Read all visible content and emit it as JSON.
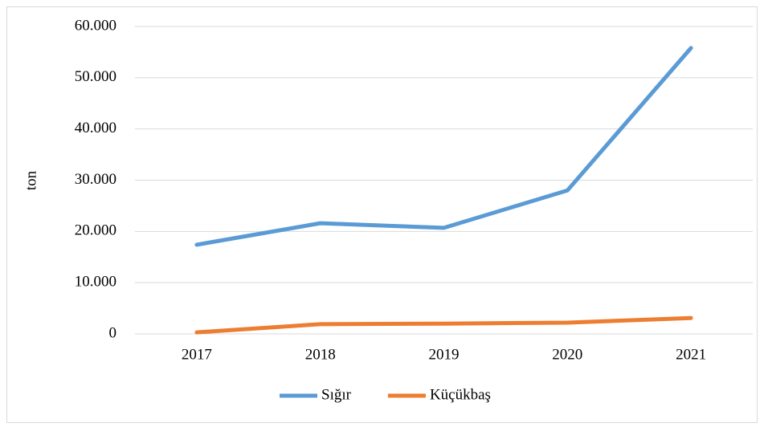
{
  "chart_data": {
    "type": "line",
    "y_label": "ton",
    "categories": [
      "2017",
      "2018",
      "2019",
      "2020",
      "2021"
    ],
    "series": [
      {
        "name": "Sığır",
        "color": "#5b9bd5",
        "values": [
          17400,
          21600,
          20700,
          28000,
          55800
        ]
      },
      {
        "name": "Küçükbaş",
        "color": "#ed7d31",
        "values": [
          300,
          1900,
          2000,
          2200,
          3100
        ]
      }
    ],
    "ylim": [
      0,
      60000
    ],
    "yticks": [
      0,
      {
        "value": 10000,
        "label": "10.000"
      },
      {
        "value": 20000,
        "label": "20.000"
      },
      {
        "value": 30000,
        "label": "30.000"
      },
      {
        "value": 40000,
        "label": "40.000"
      },
      {
        "value": 50000,
        "label": "50.000"
      },
      {
        "value": 60000,
        "label": "60.000"
      }
    ],
    "grid": true,
    "legend": "bottom"
  }
}
